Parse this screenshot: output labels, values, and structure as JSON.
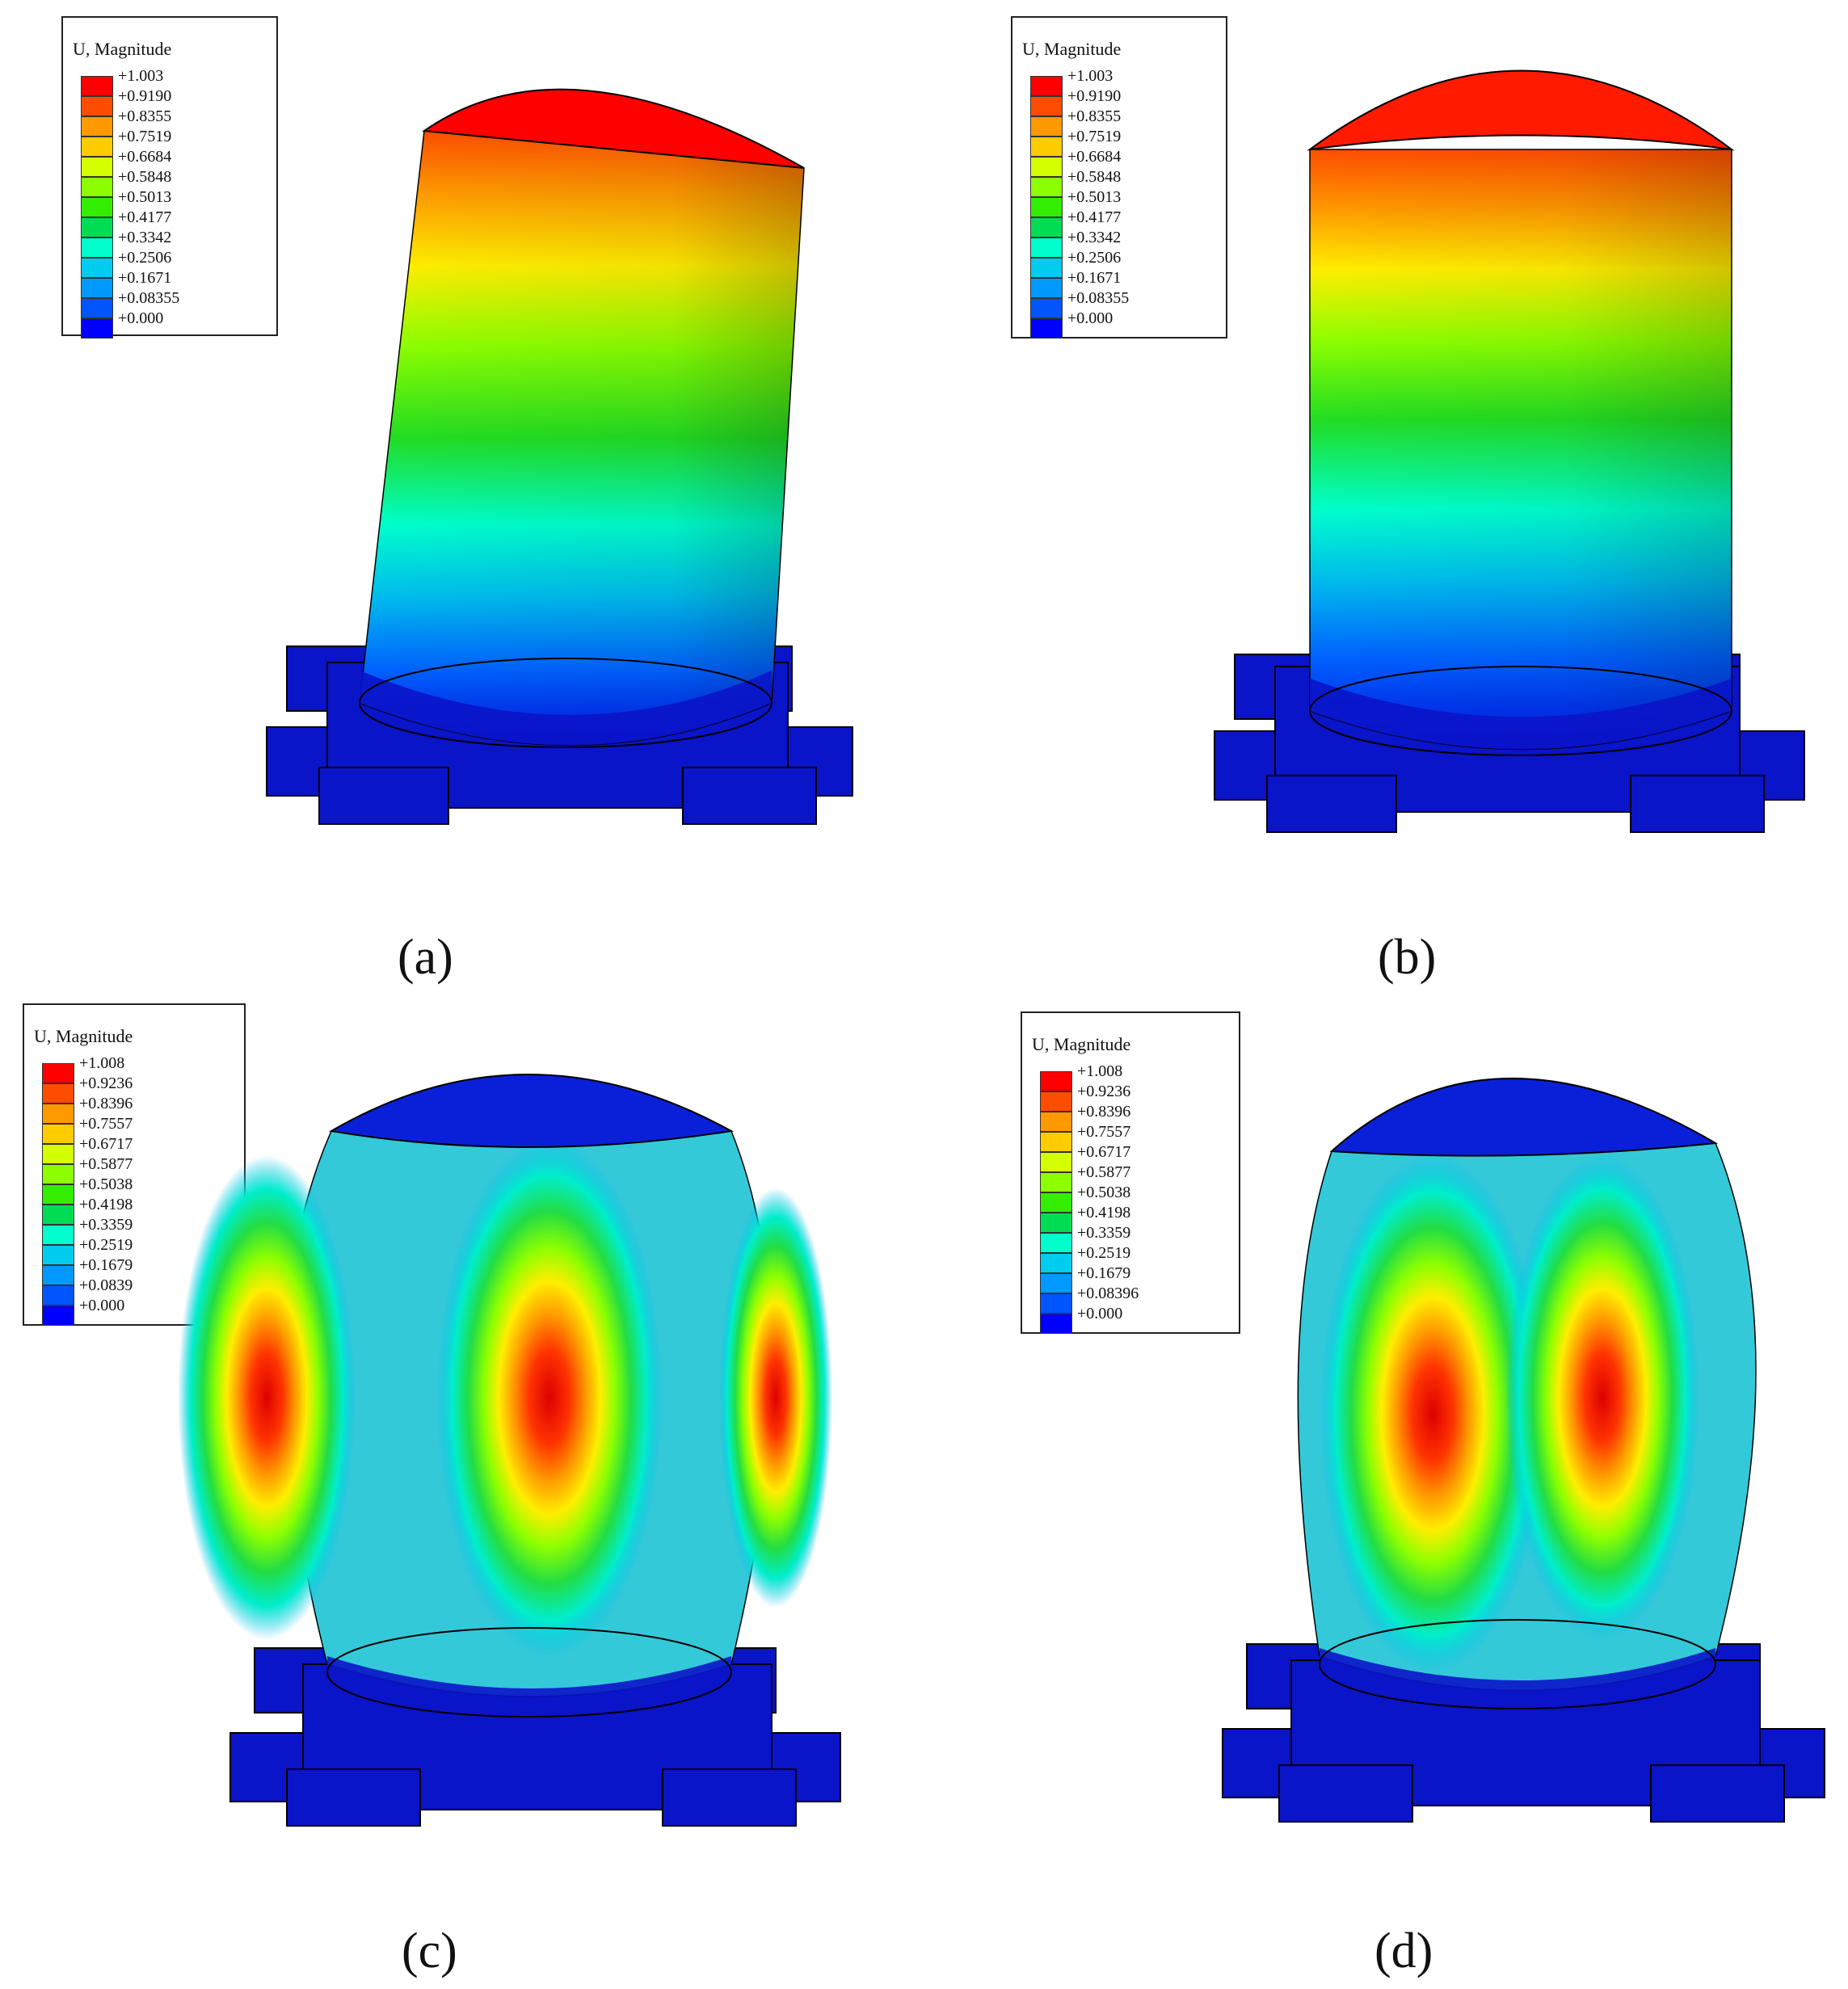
{
  "panels": [
    {
      "id": "a",
      "caption": "(a)",
      "legend_title": "U, Magnitude",
      "labels": [
        "+1.003",
        "+0.9190",
        "+0.8355",
        "+0.7519",
        "+0.6684",
        "+0.5848",
        "+0.5013",
        "+0.4177",
        "+0.3342",
        "+0.2506",
        "+0.1671",
        "+0.08355",
        "+0.000"
      ]
    },
    {
      "id": "b",
      "caption": "(b)",
      "legend_title": "U, Magnitude",
      "labels": [
        "+1.003",
        "+0.9190",
        "+0.8355",
        "+0.7519",
        "+0.6684",
        "+0.5848",
        "+0.5013",
        "+0.4177",
        "+0.3342",
        "+0.2506",
        "+0.1671",
        "+0.08355",
        "+0.000"
      ]
    },
    {
      "id": "c",
      "caption": "(c)",
      "legend_title": "U, Magnitude",
      "labels": [
        "+1.008",
        "+0.9236",
        "+0.8396",
        "+0.7557",
        "+0.6717",
        "+0.5877",
        "+0.5038",
        "+0.4198",
        "+0.3359",
        "+0.2519",
        "+0.1679",
        "+0.0839",
        "+0.000"
      ]
    },
    {
      "id": "d",
      "caption": "(d)",
      "legend_title": "U, Magnitude",
      "labels": [
        "+1.008",
        "+0.9236",
        "+0.8396",
        "+0.7557",
        "+0.6717",
        "+0.5877",
        "+0.5038",
        "+0.4198",
        "+0.3359",
        "+0.2519",
        "+0.1679",
        "+0.08396",
        "+0.000"
      ]
    }
  ],
  "colormap": [
    "#ff0000",
    "#ff4d00",
    "#ff9900",
    "#ffcc00",
    "#d4ff00",
    "#8cff00",
    "#33ee00",
    "#00dd55",
    "#00ffcc",
    "#00ccee",
    "#0099ff",
    "#0055ff",
    "#0000ff"
  ],
  "base_color": "#0a14c8"
}
